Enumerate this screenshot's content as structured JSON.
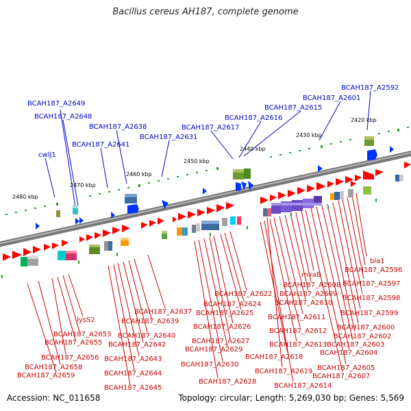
{
  "header": {
    "title": "Bacillus cereus AH187, complete genome"
  },
  "footer": {
    "accession": "Accession: NC_011658",
    "summary": "Topology: circular; Length: 5,269,030 bp; Genes: 5,569"
  },
  "colors": {
    "plus_strand_label": "#0000cc",
    "minus_strand_label": "#cc0000",
    "plus_strand_gene": "#0033ff",
    "minus_strand_gene": "#ff0000",
    "backbone": "#777777",
    "tick": "#2a9a2a"
  },
  "scale_labels": [
    "2420 kbp",
    "2430 kbp",
    "2440 kbp",
    "2450 kbp",
    "2460 kbp",
    "2470 kbp",
    "2480 kbp"
  ],
  "top_labels": [
    "BCAH187_A2592",
    "BCAH187_A2601",
    "BCAH187_A2615",
    "BCAH187_A2616",
    "BCAH187_A2617",
    "BCAH187_A2631",
    "BCAH187_A2638",
    "BCAH187_A2641",
    "BCAH187_A2648",
    "BCAH187_A2649",
    "cwlJ1"
  ],
  "bottom_labels": [
    "bla1",
    "BCAH187_A2596",
    "BCAH187_A2597",
    "BCAH187_A2598",
    "BCAH187_A2599",
    "BCAH187_A2600",
    "BCAH187_A2602",
    "BCAH187_A2603",
    "BCAH187_A2604",
    "BCAH187_A2605",
    "BCAH187_A2607",
    "mvaB",
    "BCAH187_A2608",
    "BCAH187_A2609",
    "BCAH187_A2610",
    "BCAH187_A2611",
    "BCAH187_A2612",
    "BCAH187_A2613",
    "BCAH187_A2614",
    "BCAH187_A2618",
    "BCAH187_A2619",
    "BCAH187_A2622",
    "BCAH187_A2624",
    "BCAH187_A2625",
    "BCAH187_A2626",
    "BCAH187_A2627",
    "BCAH187_A2629",
    "BCAH187_A2630",
    "BCAH187_A2628",
    "BCAH187_A2637",
    "BCAH187_A2639",
    "BCAH187_A2640",
    "BCAH187_A2642",
    "BCAH187_A2643",
    "BCAH187_A2644",
    "BCAH187_A2645",
    "lysS2",
    "BCAH187_A2653",
    "BCAH187_A2655",
    "BCAH187_A2656",
    "BCAH187_A2658",
    "BCAH187_A2659"
  ]
}
